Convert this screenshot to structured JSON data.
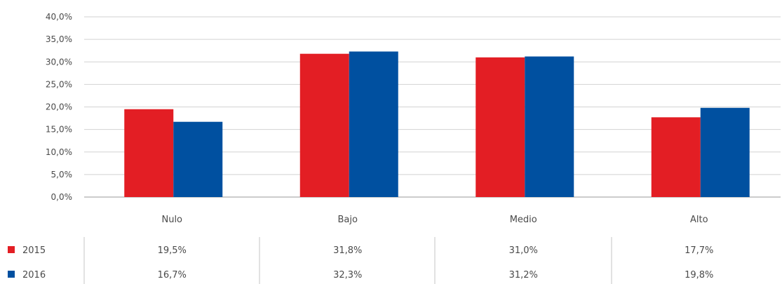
{
  "chart_data": {
    "type": "bar",
    "categories": [
      "Nulo",
      "Bajo",
      "Medio",
      "Alto"
    ],
    "series": [
      {
        "name": "2015",
        "color": "#e31e24",
        "values": [
          19.5,
          31.8,
          31.0,
          17.7
        ],
        "labels": [
          "19,5%",
          "31,8%",
          "31,0%",
          "17,7%"
        ]
      },
      {
        "name": "2016",
        "color": "#0050a0",
        "values": [
          16.7,
          32.3,
          31.2,
          19.8
        ],
        "labels": [
          "16,7%",
          "32,3%",
          "31,2%",
          "19,8%"
        ]
      }
    ],
    "ylim": [
      0,
      40
    ],
    "yticks": [
      0,
      5,
      10,
      15,
      20,
      25,
      30,
      35,
      40
    ],
    "ytick_labels": [
      "0,0%",
      "5,0%",
      "10,0%",
      "15,0%",
      "20,0%",
      "25,0%",
      "30,0%",
      "35,0%",
      "40,0%"
    ],
    "grid": true,
    "legend": "data-table-below",
    "title": "",
    "xlabel": "",
    "ylabel": ""
  }
}
